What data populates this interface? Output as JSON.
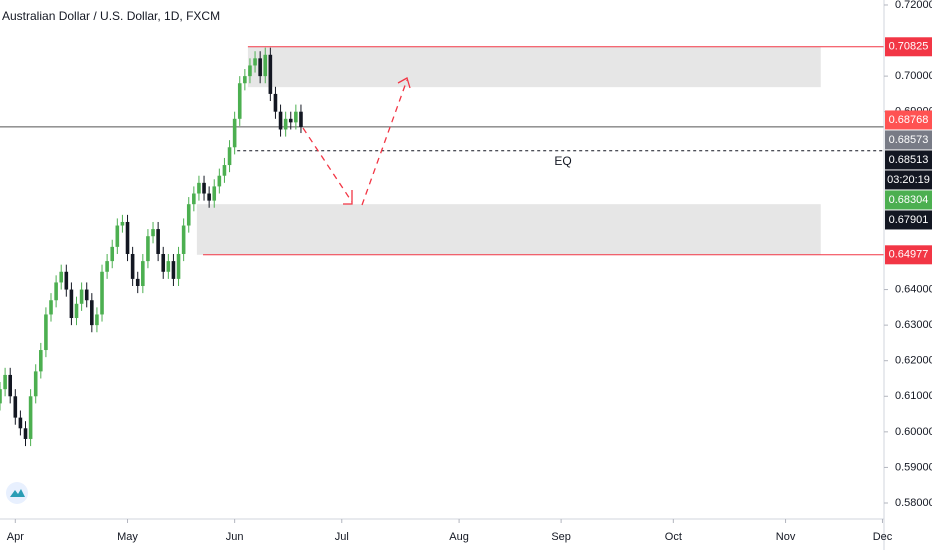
{
  "chart_data": {
    "type": "candlestick",
    "title": "Australian Dollar / U.S. Dollar, 1D, FXCM",
    "up_color": "#4caf50",
    "down_color": "#131722",
    "x": [
      -3,
      -2,
      -1,
      0,
      1,
      2,
      3,
      4,
      5,
      6,
      7,
      8,
      9,
      10,
      11,
      12,
      13,
      14,
      15,
      16,
      17,
      18,
      19,
      20,
      21,
      22,
      23,
      24,
      25,
      26,
      27,
      28,
      29,
      30,
      31,
      32,
      33,
      34,
      35,
      36,
      37,
      38,
      39,
      40,
      41,
      42,
      43,
      44,
      45,
      46,
      47,
      48,
      49,
      50,
      51,
      52,
      53,
      54,
      55,
      56
    ],
    "open": [
      0.608,
      0.612,
      0.616,
      0.61,
      0.604,
      0.601,
      0.598,
      0.61,
      0.617,
      0.623,
      0.633,
      0.637,
      0.642,
      0.645,
      0.64,
      0.632,
      0.636,
      0.64,
      0.637,
      0.63,
      0.633,
      0.645,
      0.648,
      0.652,
      0.658,
      0.659,
      0.65,
      0.643,
      0.641,
      0.648,
      0.655,
      0.657,
      0.65,
      0.645,
      0.648,
      0.643,
      0.65,
      0.658,
      0.664,
      0.667,
      0.67,
      0.667,
      0.665,
      0.669,
      0.672,
      0.675,
      0.68,
      0.688,
      0.698,
      0.7,
      0.703,
      0.705,
      0.7,
      0.706,
      0.695,
      0.69,
      0.685,
      0.688,
      0.687,
      0.69
    ],
    "high": [
      0.614,
      0.618,
      0.618,
      0.612,
      0.606,
      0.603,
      0.612,
      0.619,
      0.625,
      0.635,
      0.639,
      0.644,
      0.647,
      0.647,
      0.642,
      0.638,
      0.642,
      0.642,
      0.639,
      0.635,
      0.647,
      0.65,
      0.654,
      0.66,
      0.661,
      0.661,
      0.652,
      0.645,
      0.65,
      0.657,
      0.659,
      0.659,
      0.652,
      0.65,
      0.65,
      0.652,
      0.66,
      0.666,
      0.669,
      0.672,
      0.672,
      0.669,
      0.671,
      0.674,
      0.677,
      0.682,
      0.69,
      0.7,
      0.702,
      0.705,
      0.707,
      0.707,
      0.708,
      0.708,
      0.697,
      0.692,
      0.69,
      0.69,
      0.692,
      0.692
    ],
    "low": [
      0.606,
      0.61,
      0.608,
      0.602,
      0.599,
      0.596,
      0.596,
      0.608,
      0.615,
      0.621,
      0.631,
      0.635,
      0.64,
      0.638,
      0.63,
      0.63,
      0.634,
      0.635,
      0.628,
      0.628,
      0.631,
      0.643,
      0.646,
      0.65,
      0.656,
      0.648,
      0.641,
      0.639,
      0.639,
      0.646,
      0.653,
      0.648,
      0.643,
      0.643,
      0.641,
      0.641,
      0.648,
      0.656,
      0.662,
      0.665,
      0.665,
      0.663,
      0.663,
      0.667,
      0.67,
      0.673,
      0.678,
      0.686,
      0.696,
      0.698,
      0.701,
      0.698,
      0.698,
      0.693,
      0.688,
      0.683,
      0.683,
      0.685,
      0.685,
      0.684
    ],
    "close": [
      0.612,
      0.616,
      0.61,
      0.604,
      0.601,
      0.598,
      0.61,
      0.617,
      0.623,
      0.633,
      0.637,
      0.642,
      0.645,
      0.64,
      0.632,
      0.636,
      0.64,
      0.637,
      0.63,
      0.633,
      0.645,
      0.648,
      0.652,
      0.658,
      0.659,
      0.65,
      0.643,
      0.641,
      0.648,
      0.655,
      0.657,
      0.65,
      0.645,
      0.648,
      0.643,
      0.65,
      0.658,
      0.664,
      0.667,
      0.67,
      0.667,
      0.665,
      0.669,
      0.672,
      0.675,
      0.68,
      0.688,
      0.698,
      0.7,
      0.703,
      0.705,
      0.7,
      0.706,
      0.695,
      0.69,
      0.685,
      0.688,
      0.687,
      0.69,
      0.6857
    ],
    "xlim": [
      -3,
      170.3
    ],
    "xticks": [
      {
        "value": 0,
        "label": "Apr"
      },
      {
        "value": 22,
        "label": "May"
      },
      {
        "value": 43,
        "label": "Jun"
      },
      {
        "value": 64,
        "label": "Jul"
      },
      {
        "value": 87,
        "label": "Aug"
      },
      {
        "value": 107,
        "label": "Sep"
      },
      {
        "value": 129,
        "label": "Oct"
      },
      {
        "value": 151,
        "label": "Nov"
      },
      {
        "value": 170,
        "label": "Dec"
      }
    ],
    "ylim": [
      0.5755,
      0.7214
    ],
    "yticks": [
      {
        "value": 0.72,
        "label": "0.72000"
      },
      {
        "value": 0.7,
        "label": "0.70000"
      },
      {
        "value": 0.69,
        "label": "0.69000"
      },
      {
        "value": 0.64,
        "label": "0.64000"
      },
      {
        "value": 0.63,
        "label": "0.63000"
      },
      {
        "value": 0.62,
        "label": "0.62000"
      },
      {
        "value": 0.61,
        "label": "0.61000"
      },
      {
        "value": 0.6,
        "label": "0.60000"
      },
      {
        "value": 0.59,
        "label": "0.59000"
      },
      {
        "value": 0.58,
        "label": "0.58000"
      }
    ],
    "zones": [
      {
        "x": [
          45.6,
          157.9
        ],
        "y": [
          0.6969,
          0.70825
        ],
        "color": "#e6e6e6"
      },
      {
        "x": [
          35.6,
          157.9
        ],
        "y": [
          0.64977,
          0.664
        ],
        "color": "#e6e6e6"
      }
    ],
    "price_labels": [
      {
        "value": 0.70825,
        "color": "#f23645",
        "line": "solid",
        "line_from": 45.6
      },
      {
        "value": 0.68768,
        "color": "#ff5252"
      },
      {
        "value": 0.68573,
        "color": "#787b86",
        "line": "solid",
        "line_from": -3
      },
      {
        "value": 0.68513,
        "color": "#131722",
        "countdown": "03:20:19"
      },
      {
        "value": 0.68304,
        "color": "#4caf50"
      },
      {
        "value": 0.67901,
        "color": "#131722",
        "line": "dotted",
        "line_from": 43.5,
        "annotation": "EQ"
      },
      {
        "value": 0.64977,
        "color": "#f23645",
        "line": "solid",
        "line_from": 36.8
      }
    ]
  }
}
